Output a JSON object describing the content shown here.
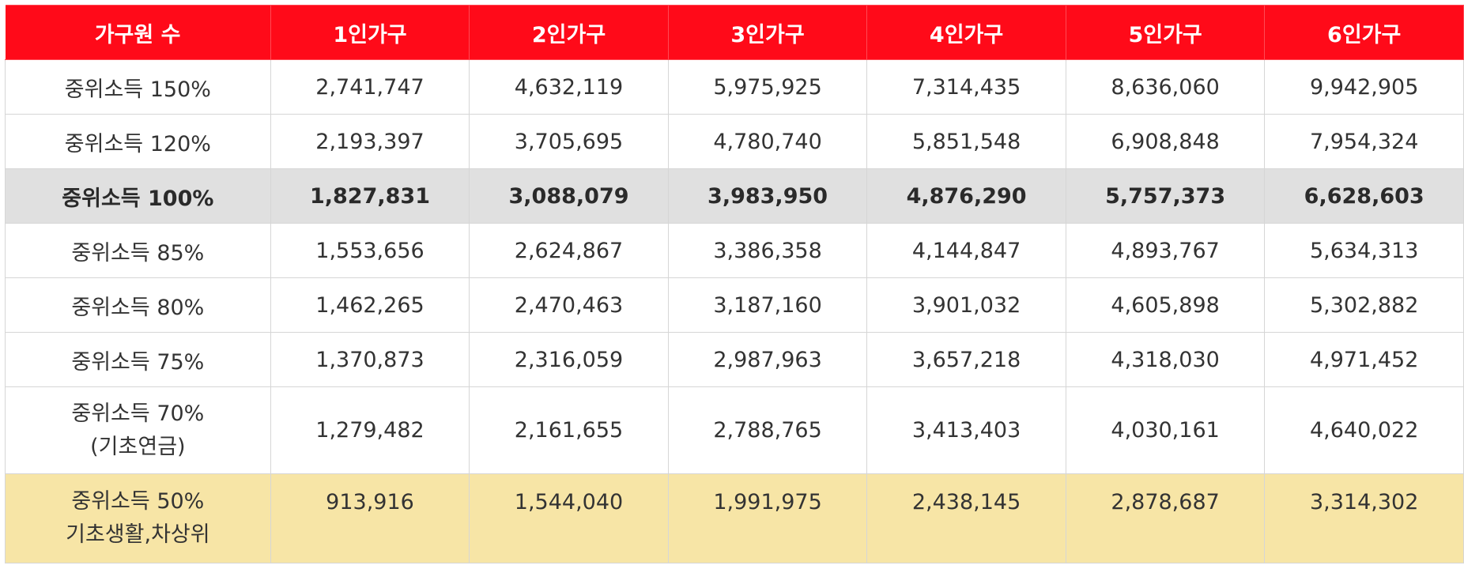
{
  "header": [
    "가구원 수",
    "1인가구",
    "2인가구",
    "3인가구",
    "4인가구",
    "5인가구",
    "6인가구"
  ],
  "rows": [
    {
      "label": [
        "중위소득 150%"
      ],
      "values": [
        "2,741,747",
        "4,632,119",
        "5,975,925",
        "7,314,435",
        "8,636,060",
        "9,942,905"
      ]
    },
    {
      "label": [
        "중위소득 120%"
      ],
      "values": [
        "2,193,397",
        "3,705,695",
        "4,780,740",
        "5,851,548",
        "6,908,848",
        "7,954,324"
      ]
    },
    {
      "label": [
        "중위소득 100%"
      ],
      "values": [
        "1,827,831",
        "3,088,079",
        "3,983,950",
        "4,876,290",
        "5,757,373",
        "6,628,603"
      ]
    },
    {
      "label": [
        "중위소득 85%"
      ],
      "values": [
        "1,553,656",
        "2,624,867",
        "3,386,358",
        "4,144,847",
        "4,893,767",
        "5,634,313"
      ]
    },
    {
      "label": [
        "중위소득 80%"
      ],
      "values": [
        "1,462,265",
        "2,470,463",
        "3,187,160",
        "3,901,032",
        "4,605,898",
        "5,302,882"
      ]
    },
    {
      "label": [
        "중위소득 75%"
      ],
      "values": [
        "1,370,873",
        "2,316,059",
        "2,987,963",
        "3,657,218",
        "4,318,030",
        "4,971,452"
      ]
    },
    {
      "label": [
        "중위소득 70%",
        "(기초연금)"
      ],
      "values": [
        "1,279,482",
        "2,161,655",
        "2,788,765",
        "3,413,403",
        "4,030,161",
        "4,640,022"
      ]
    },
    {
      "label": [
        "중위소득 50%",
        "기초생활,차상위"
      ],
      "values": [
        "913,916",
        "1,544,040",
        "1,991,975",
        "2,438,145",
        "2,878,687",
        "3,314,302"
      ]
    }
  ],
  "colors": {
    "header_bg": "#ff0a19",
    "highlight_gray": "#e0e0e0",
    "highlight_yellow": "#f7e5a6"
  }
}
